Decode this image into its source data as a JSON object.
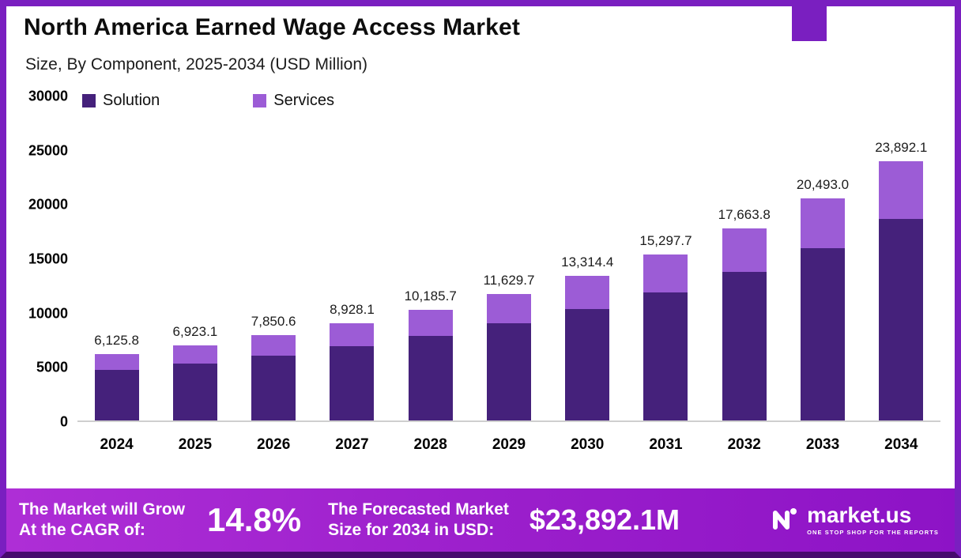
{
  "header": {
    "title": "North America Earned Wage Access Market",
    "subtitle": "Size, By Component, 2025-2034 (USD Million)"
  },
  "chart_data": {
    "type": "bar",
    "stacked": true,
    "title": "North America Earned Wage Access Market",
    "subtitle": "Size, By Component, 2025-2034 (USD Million)",
    "categories": [
      "2024",
      "2025",
      "2026",
      "2027",
      "2028",
      "2029",
      "2030",
      "2031",
      "2032",
      "2033",
      "2034"
    ],
    "series": [
      {
        "name": "Solution",
        "color": "#45217b",
        "values": [
          4655,
          5275,
          6000,
          6840,
          7820,
          8940,
          10270,
          11820,
          13670,
          15900,
          18560
        ]
      },
      {
        "name": "Services",
        "color": "#9c5cd6",
        "values": [
          1470.8,
          1648.1,
          1850.6,
          2088.1,
          2365.7,
          2689.7,
          3044.4,
          3477.7,
          3993.8,
          4593.0,
          5332.1
        ]
      }
    ],
    "totals": [
      6125.8,
      6923.1,
      7850.6,
      8928.1,
      10185.7,
      11629.7,
      13314.4,
      15297.7,
      17663.8,
      20493.0,
      23892.1
    ],
    "total_labels": [
      "6,125.8",
      "6,923.1",
      "7,850.6",
      "8,928.1",
      "10,185.7",
      "11,629.7",
      "13,314.4",
      "15,297.7",
      "17,663.8",
      "20,493.0",
      "23,892.1"
    ],
    "ylim": [
      0,
      30000
    ],
    "yticks": [
      0,
      5000,
      10000,
      15000,
      20000,
      25000,
      30000
    ],
    "legend": [
      "Solution",
      "Services"
    ],
    "legend_position": "inside-top-left",
    "grid": false
  },
  "footer": {
    "growth_line1": "The Market will Grow",
    "growth_line2": "At the CAGR of:",
    "cagr_value": "14.8%",
    "forecast_line1": "The Forecasted Market",
    "forecast_line2": "Size for 2034 in USD:",
    "forecast_value": "$23,892.1M",
    "brand": "market.us",
    "brand_tagline": "ONE STOP SHOP FOR THE REPORTS"
  }
}
